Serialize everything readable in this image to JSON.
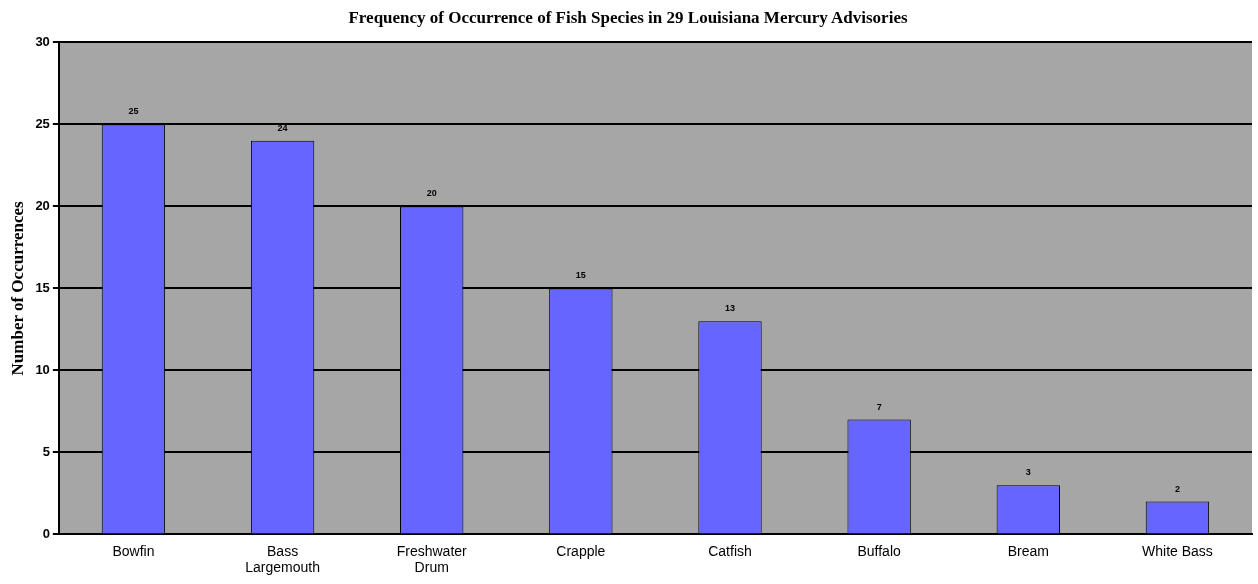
{
  "chart_data": {
    "type": "bar",
    "title": "Frequency of Occurrence of Fish Species in 29 Louisiana Mercury Advisories",
    "ylabel": "Number of Occurrences",
    "categories": [
      "Bowfin",
      "Bass\nLargemouth",
      "Freshwater\nDrum",
      "Crapple",
      "Catfish",
      "Buffalo",
      "Bream",
      "White Bass"
    ],
    "values": [
      25,
      24,
      20,
      15,
      13,
      7,
      3,
      2
    ],
    "color": "#6666ff",
    "ylim": [
      0,
      30
    ],
    "yticks": [
      0,
      5,
      10,
      15,
      20,
      25,
      30
    ],
    "grid": "y",
    "data_labels": true,
    "legend": false
  }
}
